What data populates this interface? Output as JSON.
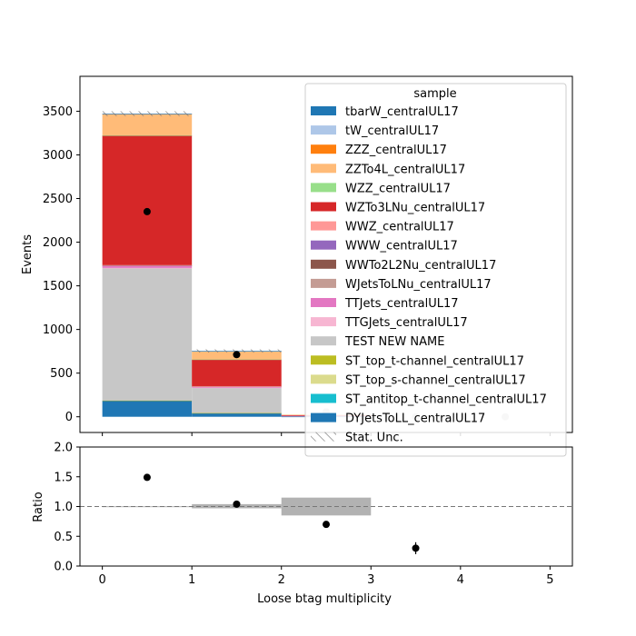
{
  "chart_data": {
    "type": "bar",
    "stacked": true,
    "xlabel": "Loose btag multiplicity",
    "top_panel": {
      "ylabel": "Events",
      "ylim": [
        -180,
        3900
      ],
      "yticks": [
        0,
        500,
        1000,
        1500,
        2000,
        2500,
        3000,
        3500
      ],
      "bin_edges": [
        0,
        1,
        2,
        3,
        4,
        5
      ],
      "series": [
        {
          "name": "DYJetsToLL_centralUL17",
          "color": "#1f77b4",
          "values": [
            185,
            42,
            2,
            0,
            0
          ]
        },
        {
          "name": "ST_antitop_t-channel_centralUL17",
          "color": "#17becf",
          "values": [
            0,
            0,
            0,
            0,
            0
          ]
        },
        {
          "name": "ST_top_s-channel_centralUL17",
          "color": "#dbdb8d",
          "values": [
            0,
            0,
            0,
            0,
            0
          ]
        },
        {
          "name": "ST_top_t-channel_centralUL17",
          "color": "#bcbd22",
          "values": [
            2,
            1,
            0,
            0,
            0
          ]
        },
        {
          "name": "TEST NEW NAME",
          "color": "#c7c7c7",
          "values": [
            1515,
            290,
            8,
            0,
            0
          ]
        },
        {
          "name": "TTGJets_centralUL17",
          "color": "#f7b6d2",
          "values": [
            3,
            1,
            0,
            0,
            0
          ]
        },
        {
          "name": "TTJets_centralUL17",
          "color": "#e377c2",
          "values": [
            22,
            13,
            1,
            0,
            0
          ]
        },
        {
          "name": "WJetsToLNu_centralUL17",
          "color": "#c49c94",
          "values": [
            4,
            2,
            0,
            0,
            0
          ]
        },
        {
          "name": "WWTo2L2Nu_centralUL17",
          "color": "#8c564b",
          "values": [
            2,
            1,
            0,
            0,
            0
          ]
        },
        {
          "name": "WWW_centralUL17",
          "color": "#9467bd",
          "values": [
            1,
            0,
            0,
            0,
            0
          ]
        },
        {
          "name": "WWZ_centralUL17",
          "color": "#ff9896",
          "values": [
            3,
            1,
            0,
            0,
            0
          ]
        },
        {
          "name": "WZTo3LNu_centralUL17",
          "color": "#d62728",
          "values": [
            1485,
            305,
            12,
            0,
            0
          ]
        },
        {
          "name": "WZZ_centralUL17",
          "color": "#98df8a",
          "values": [
            2,
            1,
            0,
            0,
            0
          ]
        },
        {
          "name": "ZZTo4L_centralUL17",
          "color": "#ffbb78",
          "values": [
            245,
            95,
            1,
            0,
            0
          ]
        },
        {
          "name": "ZZZ_centralUL17",
          "color": "#ff7f0e",
          "values": [
            1,
            0,
            0,
            0,
            0
          ]
        },
        {
          "name": "tW_centralUL17",
          "color": "#aec7e8",
          "values": [
            1,
            1,
            0,
            0,
            0
          ]
        },
        {
          "name": "tbarW_centralUL17",
          "color": "#1f77b4",
          "values": [
            1,
            1,
            0,
            0,
            0
          ]
        }
      ],
      "data_points": {
        "x": [
          0.5,
          1.5,
          2.5,
          3.5,
          4.5
        ],
        "y": [
          2350,
          712,
          56,
          0,
          0
        ],
        "colors": [
          "#000000",
          "#000000",
          "#c8c8c8",
          "#c8c8c8",
          "#c8c8c8"
        ]
      },
      "legend": {
        "title": "sample",
        "placement": "top-right",
        "entries": [
          {
            "label": "tbarW_centralUL17",
            "color": "#1f77b4"
          },
          {
            "label": "tW_centralUL17",
            "color": "#aec7e8"
          },
          {
            "label": "ZZZ_centralUL17",
            "color": "#ff7f0e"
          },
          {
            "label": "ZZTo4L_centralUL17",
            "color": "#ffbb78"
          },
          {
            "label": "WZZ_centralUL17",
            "color": "#98df8a"
          },
          {
            "label": "WZTo3LNu_centralUL17",
            "color": "#d62728"
          },
          {
            "label": "WWZ_centralUL17",
            "color": "#ff9896"
          },
          {
            "label": "WWW_centralUL17",
            "color": "#9467bd"
          },
          {
            "label": "WWTo2L2Nu_centralUL17",
            "color": "#8c564b"
          },
          {
            "label": "WJetsToLNu_centralUL17",
            "color": "#c49c94"
          },
          {
            "label": "TTJets_centralUL17",
            "color": "#e377c2"
          },
          {
            "label": "TTGJets_centralUL17",
            "color": "#f7b6d2"
          },
          {
            "label": "TEST NEW NAME",
            "color": "#c7c7c7"
          },
          {
            "label": "ST_top_t-channel_centralUL17",
            "color": "#bcbd22"
          },
          {
            "label": "ST_top_s-channel_centralUL17",
            "color": "#dbdb8d"
          },
          {
            "label": "ST_antitop_t-channel_centralUL17",
            "color": "#17becf"
          },
          {
            "label": "DYJetsToLL_centralUL17",
            "color": "#1f77b4"
          },
          {
            "label": "Stat. Unc.",
            "hatch": true
          }
        ]
      }
    },
    "ratio_panel": {
      "ylabel": "Ratio",
      "ylim": [
        0.0,
        2.0
      ],
      "yticks": [
        "0.0",
        "0.5",
        "1.0",
        "1.5",
        "2.0"
      ],
      "reference_line": 1.0,
      "unc_bands": [
        {
          "x0": 0,
          "x1": 1,
          "lo": 0.995,
          "hi": 1.005
        },
        {
          "x0": 1,
          "x1": 2,
          "lo": 0.97,
          "hi": 1.04
        },
        {
          "x0": 2,
          "x1": 3,
          "lo": 0.85,
          "hi": 1.15
        }
      ],
      "points": [
        {
          "x": 0.5,
          "y": 1.49,
          "err": 0.02
        },
        {
          "x": 1.5,
          "y": 1.04,
          "err": 0.03
        },
        {
          "x": 2.5,
          "y": 0.7,
          "err": 0.03
        },
        {
          "x": 3.5,
          "y": 0.3,
          "err": 0.1
        }
      ]
    },
    "xticks": [
      "0",
      "1",
      "2",
      "3",
      "4",
      "5"
    ],
    "xlim": [
      -0.25,
      5.25
    ]
  }
}
